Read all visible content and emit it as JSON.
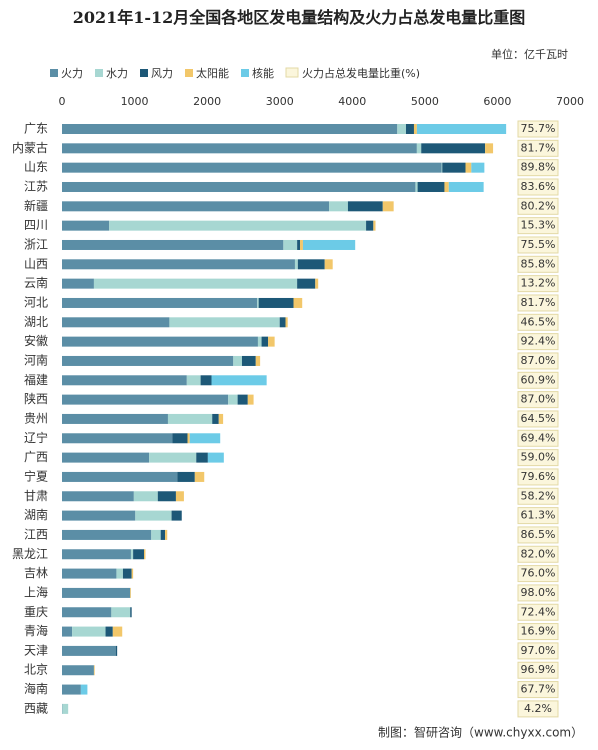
{
  "chart_data": {
    "type": "stacked_barh",
    "title": "2021年1-12月全国各地区发电量结构及火力占总发电量比重图",
    "unit": "单位：亿千瓦时",
    "source": "制图：智研咨询（www.chyxx.com）",
    "categories": [
      "广东",
      "内蒙古",
      "山东",
      "江苏",
      "新疆",
      "四川",
      "浙江",
      "山西",
      "云南",
      "河北",
      "湖北",
      "安徽",
      "河南",
      "福建",
      "陕西",
      "贵州",
      "辽宁",
      "广西",
      "宁夏",
      "甘肃",
      "湖南",
      "江西",
      "黑龙江",
      "吉林",
      "上海",
      "重庆",
      "青海",
      "天津",
      "北京",
      "海南",
      "西藏"
    ],
    "series": [
      {
        "name": "火力",
        "color": "#5b8ea6",
        "values": [
          4620,
          4890,
          5230,
          4870,
          3680,
          650,
          3050,
          3210,
          440,
          2690,
          1480,
          2700,
          2360,
          1720,
          2290,
          1460,
          1520,
          1200,
          1590,
          990,
          1010,
          1230,
          950,
          750,
          940,
          680,
          140,
          740,
          440,
          260,
          5
        ]
      },
      {
        "name": "水力",
        "color": "#a7d7d2",
        "values": [
          120,
          60,
          10,
          30,
          260,
          3540,
          190,
          40,
          2800,
          20,
          1520,
          50,
          120,
          190,
          130,
          610,
          0,
          650,
          0,
          330,
          500,
          130,
          30,
          90,
          0,
          260,
          460,
          0,
          0,
          0,
          80
        ]
      },
      {
        "name": "风力",
        "color": "#1d5877",
        "values": [
          110,
          880,
          320,
          370,
          480,
          100,
          40,
          370,
          250,
          480,
          80,
          90,
          190,
          150,
          140,
          90,
          210,
          160,
          240,
          250,
          140,
          60,
          150,
          120,
          0,
          20,
          100,
          20,
          0,
          0,
          0
        ]
      },
      {
        "name": "太阳能",
        "color": "#f2c76a",
        "values": [
          40,
          110,
          80,
          60,
          150,
          30,
          40,
          110,
          40,
          120,
          30,
          90,
          60,
          0,
          80,
          60,
          30,
          0,
          130,
          110,
          0,
          30,
          20,
          20,
          10,
          0,
          130,
          0,
          10,
          0,
          0
        ]
      },
      {
        "name": "核能",
        "color": "#6ccbe7",
        "values": [
          1230,
          0,
          180,
          480,
          0,
          0,
          720,
          0,
          0,
          0,
          0,
          0,
          0,
          760,
          0,
          0,
          420,
          220,
          0,
          0,
          0,
          0,
          0,
          0,
          0,
          0,
          0,
          0,
          0,
          90,
          0
        ]
      }
    ],
    "ratio": {
      "name": "火力占总发电量比重(%)",
      "color": "#fbf6dc",
      "border": "#e3d9a6",
      "values": [
        75.7,
        81.7,
        89.8,
        83.6,
        80.2,
        15.3,
        75.5,
        85.8,
        13.2,
        81.7,
        46.5,
        92.4,
        87.0,
        60.9,
        87.0,
        64.5,
        69.4,
        59.0,
        79.6,
        58.2,
        61.3,
        86.5,
        82.0,
        76.0,
        98.0,
        72.4,
        16.9,
        97.0,
        96.9,
        67.7,
        4.2
      ],
      "value_labels": [
        "75.7%",
        "81.7%",
        "89.8%",
        "83.6%",
        "80.2%",
        "15.3%",
        "75.5%",
        "85.8%",
        "13.2%",
        "81.7%",
        "46.5%",
        "92.4%",
        "87.0%",
        "60.9%",
        "87.0%",
        "64.5%",
        "69.4%",
        "59.0%",
        "79.6%",
        "58.2%",
        "61.3%",
        "86.5%",
        "82.0%",
        "76.0%",
        "98.0%",
        "72.4%",
        "16.9%",
        "97.0%",
        "96.9%",
        "67.7%",
        "4.2%"
      ]
    },
    "xlim": [
      0,
      7000
    ],
    "xticks": [
      0,
      1000,
      2000,
      3000,
      4000,
      5000,
      6000,
      7000
    ]
  }
}
